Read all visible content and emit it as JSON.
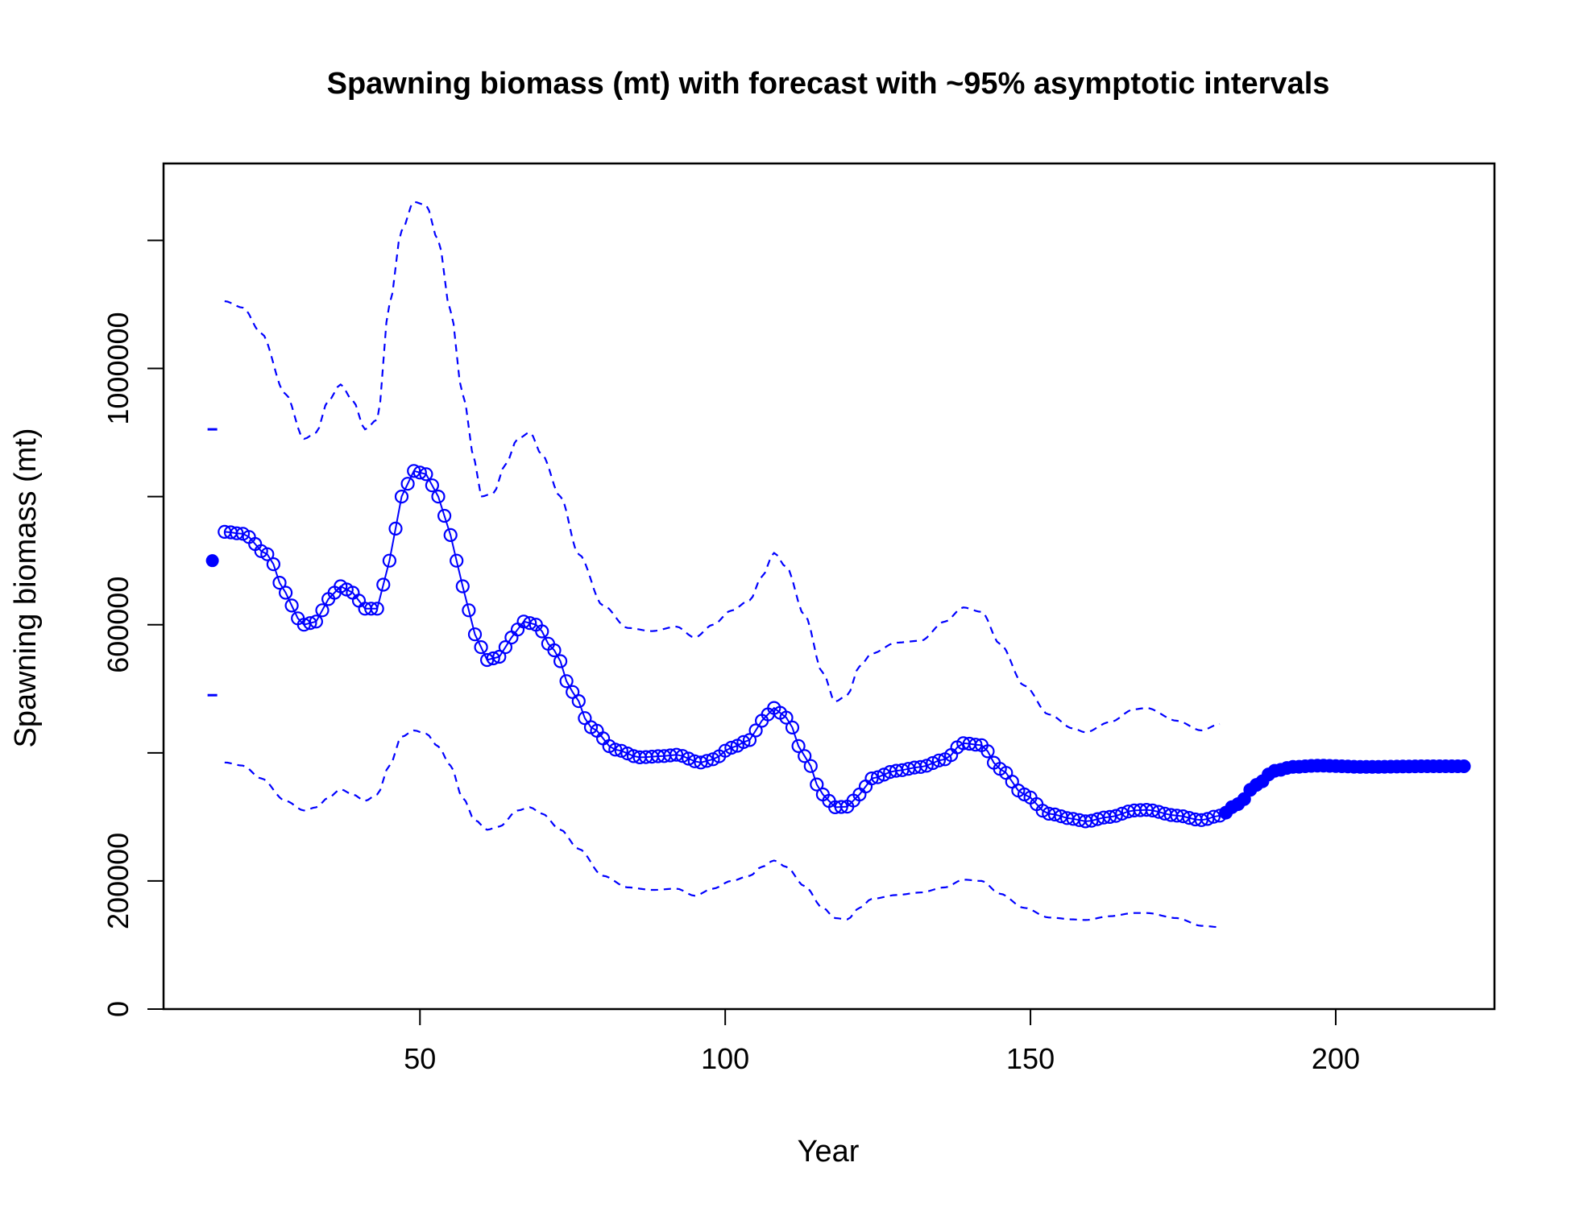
{
  "chart_data": {
    "type": "line",
    "title": "Spawning biomass (mt) with forecast with ~95% asymptotic intervals",
    "xlabel": "Year",
    "ylabel": "Spawning biomass (mt)",
    "xlim": [
      8,
      226
    ],
    "ylim": [
      0,
      1320000
    ],
    "x_ticks": [
      50,
      100,
      150,
      200
    ],
    "x_tick_labels": [
      "50",
      "100",
      "150",
      "200"
    ],
    "y_ticks": [
      0,
      200000,
      400000,
      600000,
      800000,
      1000000,
      1200000
    ],
    "y_tick_labels": [
      "0",
      "200000",
      "",
      "600000",
      "",
      "1000000",
      ""
    ],
    "grid": false,
    "legend": "none",
    "colors": {
      "series": "#0000ff",
      "axes": "#000000"
    },
    "virgin": {
      "x": 16,
      "y": 700000,
      "upper": 905000,
      "lower": 490000
    },
    "estimate_knots": [
      [
        18,
        745000
      ],
      [
        21,
        742000
      ],
      [
        25,
        710000
      ],
      [
        28,
        650000
      ],
      [
        30,
        610000
      ],
      [
        31,
        600000
      ],
      [
        33,
        605000
      ],
      [
        35,
        640000
      ],
      [
        37,
        660000
      ],
      [
        39,
        650000
      ],
      [
        41,
        625000
      ],
      [
        43,
        625000
      ],
      [
        45,
        700000
      ],
      [
        47,
        800000
      ],
      [
        49,
        840000
      ],
      [
        51,
        835000
      ],
      [
        53,
        800000
      ],
      [
        55,
        740000
      ],
      [
        57,
        660000
      ],
      [
        59,
        585000
      ],
      [
        61,
        545000
      ],
      [
        63,
        550000
      ],
      [
        65,
        580000
      ],
      [
        67,
        605000
      ],
      [
        69,
        600000
      ],
      [
        72,
        560000
      ],
      [
        75,
        495000
      ],
      [
        78,
        440000
      ],
      [
        82,
        405000
      ],
      [
        86,
        393000
      ],
      [
        90,
        395000
      ],
      [
        92,
        397000
      ],
      [
        96,
        385000
      ],
      [
        98,
        390000
      ],
      [
        101,
        408000
      ],
      [
        104,
        420000
      ],
      [
        106,
        450000
      ],
      [
        108,
        470000
      ],
      [
        110,
        455000
      ],
      [
        113,
        395000
      ],
      [
        116,
        335000
      ],
      [
        118,
        315000
      ],
      [
        120,
        316000
      ],
      [
        122,
        335000
      ],
      [
        124,
        360000
      ],
      [
        128,
        372000
      ],
      [
        132,
        378000
      ],
      [
        136,
        390000
      ],
      [
        139,
        415000
      ],
      [
        142,
        412000
      ],
      [
        145,
        375000
      ],
      [
        149,
        335000
      ],
      [
        153,
        305000
      ],
      [
        157,
        297000
      ],
      [
        159,
        293000
      ],
      [
        163,
        300000
      ],
      [
        167,
        310000
      ],
      [
        169,
        311000
      ],
      [
        174,
        302000
      ],
      [
        178,
        295000
      ],
      [
        181,
        302000
      ]
    ],
    "forecast_knots": [
      [
        181,
        302000
      ],
      [
        184,
        320000
      ],
      [
        187,
        350000
      ],
      [
        190,
        372000
      ],
      [
        193,
        378000
      ],
      [
        197,
        380000
      ],
      [
        205,
        378000
      ],
      [
        215,
        379000
      ],
      [
        221,
        379000
      ]
    ],
    "upper_ci_knots": [
      [
        18,
        1105000
      ],
      [
        21,
        1095000
      ],
      [
        24,
        1055000
      ],
      [
        28,
        960000
      ],
      [
        31,
        890000
      ],
      [
        33,
        900000
      ],
      [
        35,
        950000
      ],
      [
        37,
        975000
      ],
      [
        39,
        950000
      ],
      [
        41,
        905000
      ],
      [
        43,
        920000
      ],
      [
        45,
        1100000
      ],
      [
        47,
        1215000
      ],
      [
        49,
        1260000
      ],
      [
        51,
        1255000
      ],
      [
        53,
        1200000
      ],
      [
        55,
        1090000
      ],
      [
        57,
        960000
      ],
      [
        59,
        855000
      ],
      [
        60,
        800000
      ],
      [
        62,
        805000
      ],
      [
        64,
        850000
      ],
      [
        66,
        890000
      ],
      [
        68,
        900000
      ],
      [
        70,
        865000
      ],
      [
        73,
        800000
      ],
      [
        76,
        710000
      ],
      [
        80,
        630000
      ],
      [
        84,
        595000
      ],
      [
        88,
        590000
      ],
      [
        92,
        597000
      ],
      [
        95,
        580000
      ],
      [
        98,
        600000
      ],
      [
        101,
        622000
      ],
      [
        104,
        638000
      ],
      [
        106,
        675000
      ],
      [
        108,
        712000
      ],
      [
        110,
        690000
      ],
      [
        113,
        615000
      ],
      [
        116,
        525000
      ],
      [
        118,
        480000
      ],
      [
        120,
        490000
      ],
      [
        122,
        535000
      ],
      [
        124,
        555000
      ],
      [
        128,
        572000
      ],
      [
        132,
        575000
      ],
      [
        136,
        605000
      ],
      [
        139,
        627000
      ],
      [
        142,
        620000
      ],
      [
        145,
        570000
      ],
      [
        149,
        505000
      ],
      [
        153,
        460000
      ],
      [
        157,
        438000
      ],
      [
        159,
        432000
      ],
      [
        163,
        448000
      ],
      [
        167,
        468000
      ],
      [
        169,
        470000
      ],
      [
        174,
        450000
      ],
      [
        178,
        435000
      ],
      [
        181,
        445000
      ]
    ],
    "lower_ci_knots": [
      [
        18,
        385000
      ],
      [
        21,
        380000
      ],
      [
        24,
        360000
      ],
      [
        28,
        325000
      ],
      [
        31,
        310000
      ],
      [
        33,
        315000
      ],
      [
        35,
        330000
      ],
      [
        37,
        343000
      ],
      [
        39,
        335000
      ],
      [
        41,
        325000
      ],
      [
        43,
        335000
      ],
      [
        45,
        380000
      ],
      [
        47,
        425000
      ],
      [
        49,
        435000
      ],
      [
        51,
        430000
      ],
      [
        53,
        410000
      ],
      [
        55,
        380000
      ],
      [
        57,
        330000
      ],
      [
        59,
        295000
      ],
      [
        61,
        280000
      ],
      [
        63,
        285000
      ],
      [
        66,
        310000
      ],
      [
        68,
        315000
      ],
      [
        70,
        305000
      ],
      [
        73,
        280000
      ],
      [
        76,
        250000
      ],
      [
        80,
        208000
      ],
      [
        84,
        190000
      ],
      [
        88,
        186000
      ],
      [
        92,
        188000
      ],
      [
        95,
        177000
      ],
      [
        98,
        188000
      ],
      [
        101,
        200000
      ],
      [
        104,
        208000
      ],
      [
        106,
        222000
      ],
      [
        108,
        232000
      ],
      [
        110,
        222000
      ],
      [
        113,
        192000
      ],
      [
        116,
        158000
      ],
      [
        118,
        142000
      ],
      [
        120,
        140000
      ],
      [
        122,
        158000
      ],
      [
        124,
        172000
      ],
      [
        128,
        178000
      ],
      [
        132,
        182000
      ],
      [
        136,
        190000
      ],
      [
        139,
        202000
      ],
      [
        142,
        200000
      ],
      [
        145,
        180000
      ],
      [
        149,
        158000
      ],
      [
        153,
        143000
      ],
      [
        157,
        140000
      ],
      [
        159,
        139000
      ],
      [
        163,
        145000
      ],
      [
        167,
        150000
      ],
      [
        169,
        150000
      ],
      [
        174,
        142000
      ],
      [
        178,
        130000
      ],
      [
        181,
        128000
      ]
    ]
  }
}
